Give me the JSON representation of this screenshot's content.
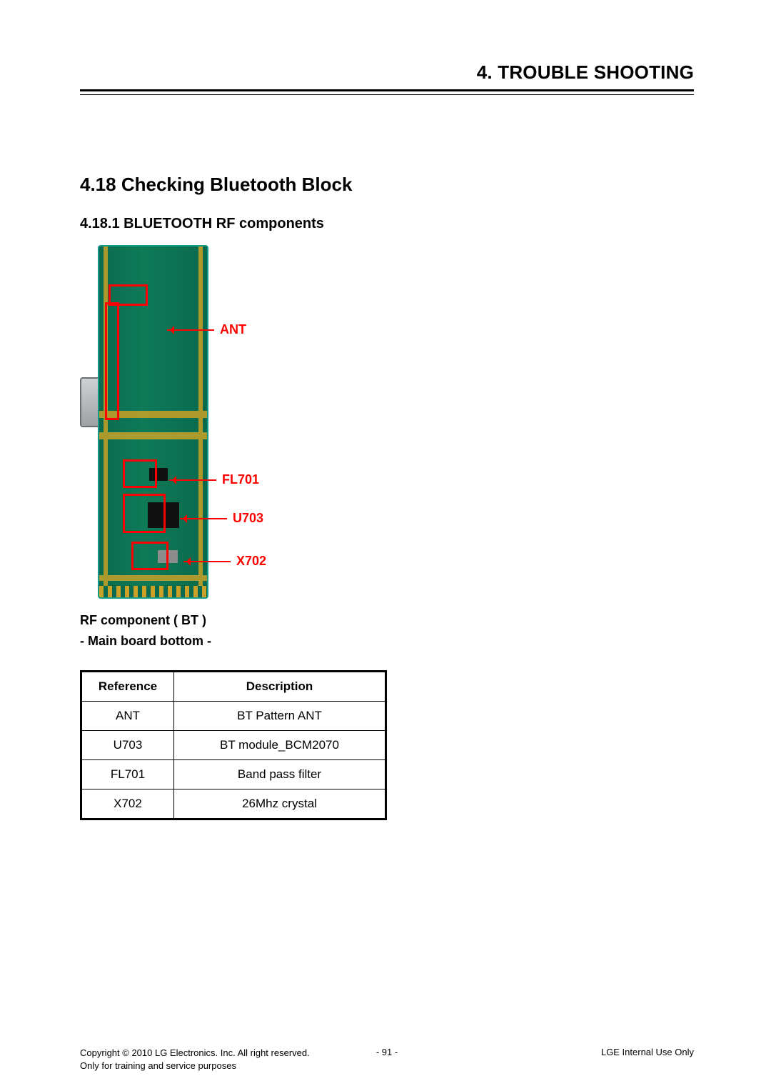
{
  "chapter_title": "4. TROUBLE SHOOTING",
  "section_title": "4.18 Checking Bluetooth Block",
  "subsection_title": "4.18.1 BLUETOOTH RF components",
  "callouts": {
    "ant": "ANT",
    "fl701": "FL701",
    "u703": "U703",
    "x702": "X702"
  },
  "figure_caption_line1": "RF component ( BT )",
  "figure_caption_line2": "- Main board bottom -",
  "table": {
    "headers": {
      "ref": "Reference",
      "desc": "Description"
    },
    "rows": [
      {
        "ref": "ANT",
        "desc": "BT Pattern ANT"
      },
      {
        "ref": "U703",
        "desc": "BT module_BCM2070"
      },
      {
        "ref": "FL701",
        "desc": "Band pass filter"
      },
      {
        "ref": "X702",
        "desc": "26Mhz crystal"
      }
    ]
  },
  "footer": {
    "copyright": "Copyright © 2010 LG Electronics. Inc. All right reserved.",
    "purpose": "Only for training and service purposes",
    "page": "- 91 -",
    "confidential": "LGE Internal Use Only"
  },
  "colors": {
    "highlight": "#ff0000",
    "pcb_green": "#0a6a4d",
    "trace_gold": "#c9a227"
  }
}
